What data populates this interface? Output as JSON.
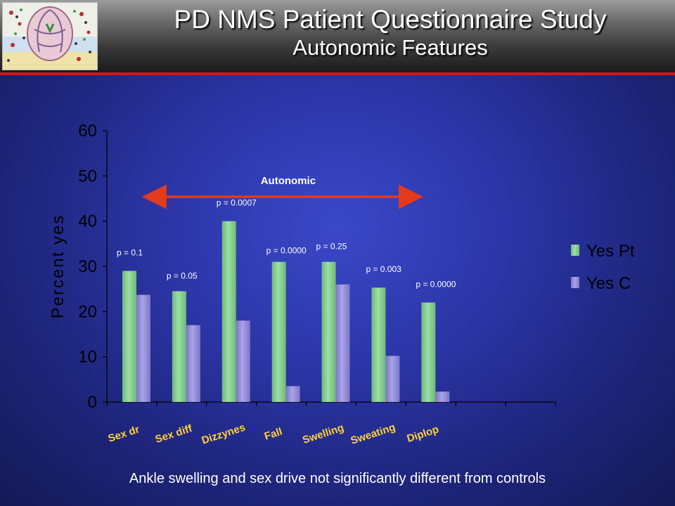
{
  "slide": {
    "title": "PD NMS Patient Questionnaire Study",
    "subtitle": "Autonomic Features",
    "footer": "Ankle swelling and sex drive not significantly different from controls"
  },
  "colors": {
    "pt": "#9ce0a6",
    "c": "#a9a3ea",
    "arrow": "#e33a1c",
    "category": "#ffd23a"
  },
  "chart_data": {
    "type": "bar",
    "ylabel": "Percent yes",
    "ylim": [
      0,
      60
    ],
    "yticks": [
      0,
      10,
      20,
      30,
      40,
      50,
      60
    ],
    "grid": false,
    "legend_position": "right",
    "categories": [
      "Sex dr",
      "Sex diff",
      "Dizzynes",
      "Fall",
      "Swelling",
      "Sweating",
      "Diplop",
      "",
      ""
    ],
    "series": [
      {
        "name": "Yes Pt",
        "values": [
          29,
          24.5,
          40,
          31,
          31,
          25.3,
          22,
          null,
          null
        ]
      },
      {
        "name": "Yes C",
        "values": [
          23.7,
          17,
          18,
          3.5,
          26,
          10.2,
          2.3,
          null,
          null
        ]
      }
    ],
    "p_values": [
      "p = 0.1",
      "p = 0.05",
      "p = 0.0007",
      "p = 0.0000",
      "p = 0.25",
      "p = 0.003",
      "p = 0.0000"
    ],
    "annotation": {
      "text": "Autonomic",
      "from_category": 0,
      "to_category": 5
    }
  }
}
